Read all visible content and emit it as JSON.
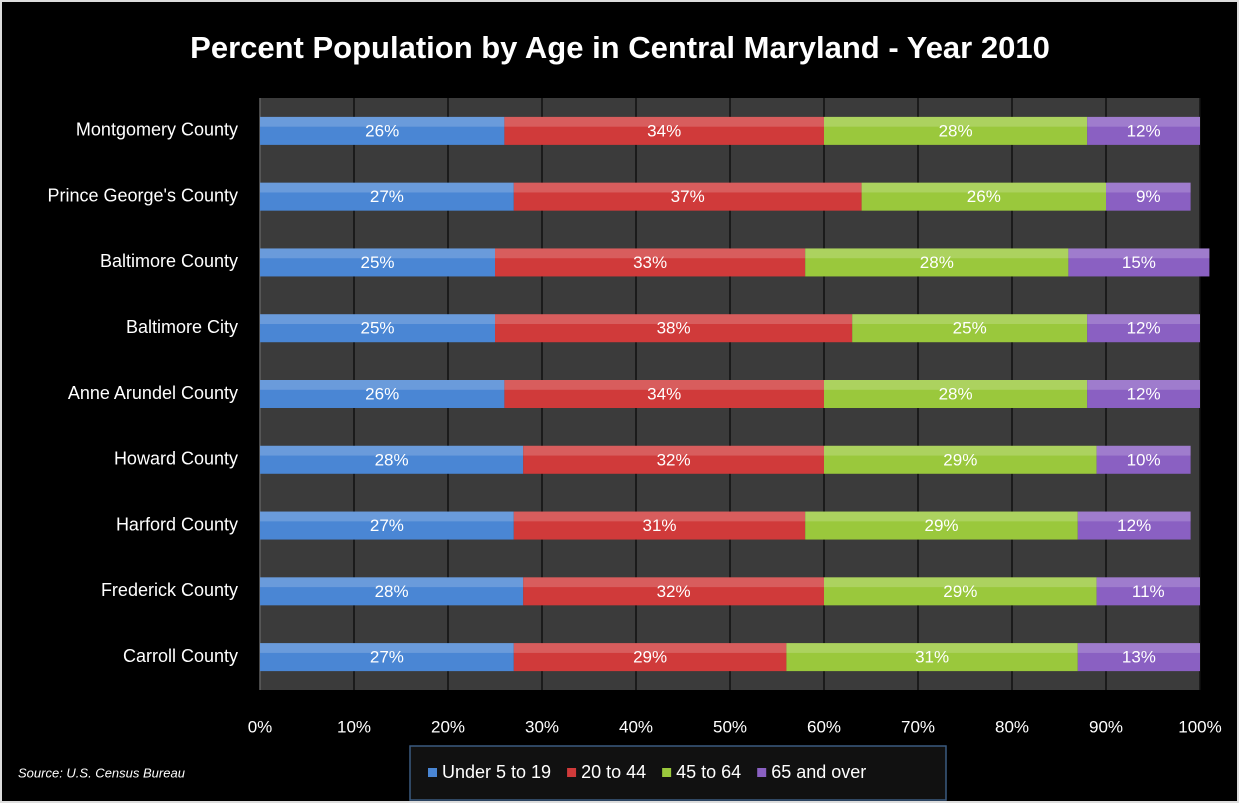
{
  "chart_data": {
    "type": "bar",
    "orientation": "horizontal",
    "stacked": true,
    "title": "Percent Population by Age in Central Maryland - Year 2010",
    "source": "Source: U.S. Census Bureau",
    "categories": [
      "Montgomery County",
      "Prince George's County",
      "Baltimore County",
      "Baltimore City",
      "Anne Arundel County",
      "Howard County",
      "Harford County",
      "Frederick County",
      "Carroll County"
    ],
    "series": [
      {
        "name": "Under 5 to 19",
        "color": "#4a86d4",
        "values": [
          26,
          27,
          25,
          25,
          26,
          28,
          27,
          28,
          27
        ],
        "value_labels": [
          "26%",
          "27%",
          "25%",
          "25%",
          "26%",
          "28%",
          "27%",
          "28%",
          "27%"
        ]
      },
      {
        "name": "20 to 44",
        "color": "#d03a3a",
        "values": [
          34,
          37,
          33,
          38,
          34,
          32,
          31,
          32,
          29
        ],
        "value_labels": [
          "34%",
          "37%",
          "33%",
          "38%",
          "34%",
          "32%",
          "31%",
          "32%",
          "29%"
        ]
      },
      {
        "name": "45 to 64",
        "color": "#9ac83c",
        "values": [
          28,
          26,
          28,
          25,
          28,
          29,
          29,
          29,
          31
        ],
        "value_labels": [
          "28%",
          "26%",
          "28%",
          "25%",
          "28%",
          "29%",
          "29%",
          "29%",
          "31%"
        ]
      },
      {
        "name": "65 and over",
        "color": "#8a60c2",
        "values": [
          12,
          9,
          15,
          12,
          12,
          10,
          12,
          11,
          13
        ],
        "value_labels": [
          "12%",
          "9%",
          "15%",
          "12%",
          "12%",
          "10%",
          "12%",
          "11%",
          "13%"
        ]
      }
    ],
    "xlim": [
      0,
      100
    ],
    "xticks": [
      {
        "value": 0,
        "label": "0%"
      },
      {
        "value": 10,
        "label": "10%"
      },
      {
        "value": 20,
        "label": "20%"
      },
      {
        "value": 30,
        "label": "30%"
      },
      {
        "value": 40,
        "label": "40%"
      },
      {
        "value": 50,
        "label": "50%"
      },
      {
        "value": 60,
        "label": "60%"
      },
      {
        "value": 70,
        "label": "70%"
      },
      {
        "value": 80,
        "label": "80%"
      },
      {
        "value": 90,
        "label": "90%"
      },
      {
        "value": 100,
        "label": "100%"
      }
    ],
    "grid": true,
    "legend": "bottom"
  }
}
